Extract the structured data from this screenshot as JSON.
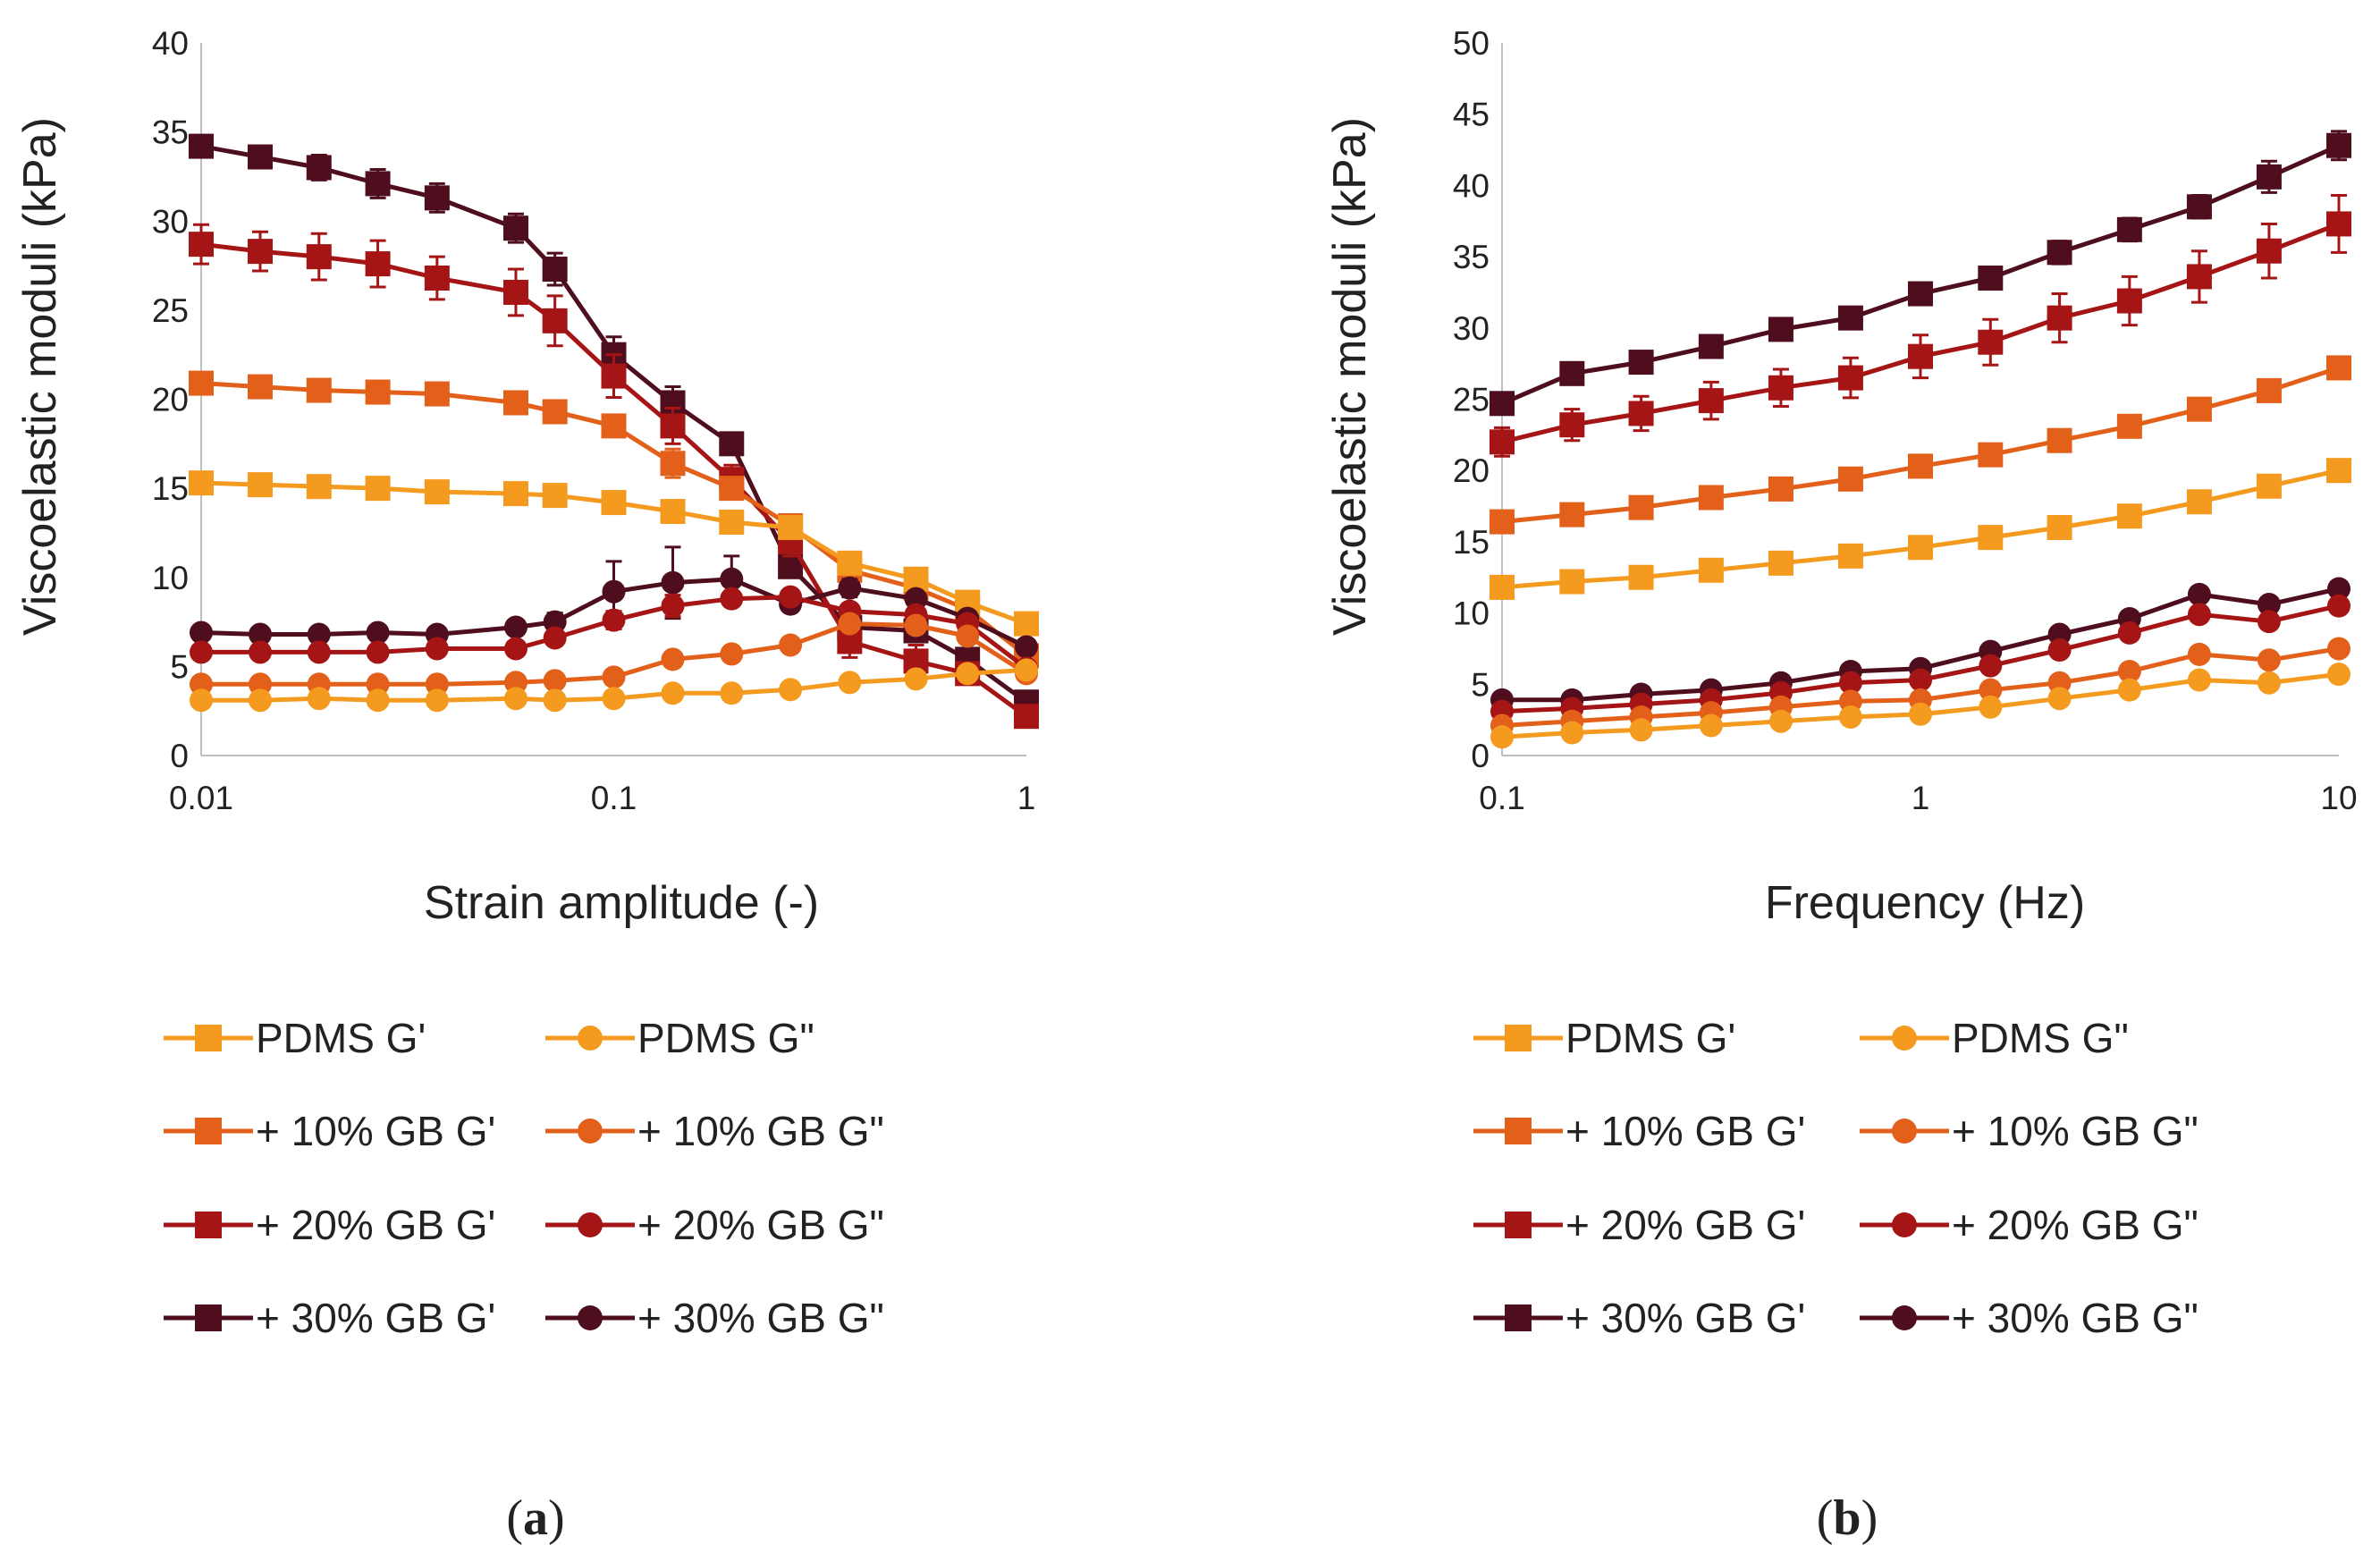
{
  "figure": {
    "panels": [
      {
        "label": "(a)",
        "label_letter": "a",
        "xlabel": "Strain amplitude (-)",
        "ylabel": "Viscoelastic moduli (kPa)",
        "xscale": "log",
        "xlim": [
          0.01,
          1
        ],
        "ylim": [
          0,
          40
        ],
        "xticks": [
          0.01,
          0.1,
          1
        ],
        "xtick_labels": [
          "0.01",
          "0.1",
          "1"
        ],
        "yticks": [
          0,
          5,
          10,
          15,
          20,
          25,
          30,
          35,
          40
        ],
        "ytick_labels": [
          "0",
          "5",
          "10",
          "15",
          "20",
          "25",
          "30",
          "35",
          "40"
        ]
      },
      {
        "label": "(b)",
        "label_letter": "b",
        "xlabel": "Frequency (Hz)",
        "ylabel": "Viscoelastic moduli (kPa)",
        "xscale": "log",
        "xlim": [
          0.1,
          10
        ],
        "ylim": [
          0,
          50
        ],
        "xticks": [
          0.1,
          1,
          10
        ],
        "xtick_labels": [
          "0.1",
          "1",
          "10"
        ],
        "yticks": [
          0,
          5,
          10,
          15,
          20,
          25,
          30,
          35,
          40,
          45,
          50
        ],
        "ytick_labels": [
          "0",
          "5",
          "10",
          "15",
          "20",
          "25",
          "30",
          "35",
          "40",
          "45",
          "50"
        ]
      }
    ],
    "series_styles": [
      {
        "name": "PDMS G'",
        "color": "#F49A1F",
        "marker": "square"
      },
      {
        "name": "PDMS G\"",
        "color": "#F49A1F",
        "marker": "circle"
      },
      {
        "name": "+ 10% GB G'",
        "color": "#E2601A",
        "marker": "square"
      },
      {
        "name": "+ 10% GB G\"",
        "color": "#E2601A",
        "marker": "circle"
      },
      {
        "name": "+ 20% GB G'",
        "color": "#A51515",
        "marker": "square"
      },
      {
        "name": "+ 20% GB G\"",
        "color": "#A51515",
        "marker": "circle"
      },
      {
        "name": "+ 30% GB G'",
        "color": "#4E0E1E",
        "marker": "square"
      },
      {
        "name": "+ 30% GB G\"",
        "color": "#4E0E1E",
        "marker": "circle"
      }
    ]
  },
  "chart_data": [
    {
      "type": "line",
      "title": "",
      "panel": "(a)",
      "xlabel": "Strain amplitude (-)",
      "ylabel": "Viscoelastic moduli (kPa)",
      "xscale": "log",
      "xlim": [
        0.01,
        1
      ],
      "ylim": [
        0,
        40
      ],
      "x": [
        0.01,
        0.0139,
        0.0193,
        0.0268,
        0.0373,
        0.0579,
        0.072,
        0.1,
        0.139,
        0.193,
        0.268,
        0.373,
        0.54,
        0.72,
        1.0
      ],
      "series": [
        {
          "name": "+ 30% GB G'",
          "values": [
            34.2,
            33.6,
            33.0,
            32.1,
            31.3,
            29.6,
            27.3,
            22.5,
            19.8,
            17.5,
            10.6,
            7.2,
            7.0,
            5.4,
            3.0
          ],
          "err": [
            0.5,
            0.6,
            0.7,
            0.8,
            0.8,
            0.8,
            0.9,
            1.0,
            0.9,
            0.6,
            0.5,
            0.6,
            0.6,
            0.4,
            0.3
          ]
        },
        {
          "name": "+ 20% GB G'",
          "values": [
            28.7,
            28.3,
            28.0,
            27.6,
            26.8,
            26.0,
            24.4,
            21.3,
            18.5,
            15.5,
            12.0,
            6.4,
            5.3,
            4.6,
            2.2
          ],
          "err": [
            1.1,
            1.1,
            1.3,
            1.3,
            1.2,
            1.3,
            1.4,
            1.2,
            1.0,
            0.8,
            0.8,
            0.9,
            0.9,
            0.5,
            0.3
          ]
        },
        {
          "name": "+ 10% GB G'",
          "values": [
            20.9,
            20.7,
            20.5,
            20.4,
            20.3,
            19.8,
            19.3,
            18.5,
            16.4,
            15.0,
            12.9,
            10.4,
            9.4,
            8.2,
            5.6
          ],
          "err": [
            0.3,
            0.3,
            0.3,
            0.3,
            0.3,
            0.3,
            0.3,
            0.4,
            0.8,
            0.4,
            0.5,
            0.4,
            0.3,
            0.3,
            0.3
          ]
        },
        {
          "name": "PDMS G'",
          "values": [
            15.3,
            15.2,
            15.1,
            15.0,
            14.8,
            14.7,
            14.6,
            14.2,
            13.7,
            13.1,
            12.8,
            10.8,
            9.9,
            8.6,
            7.4
          ],
          "err": [
            0.2,
            0.2,
            0.2,
            0.2,
            0.2,
            0.2,
            0.2,
            0.2,
            0.2,
            0.2,
            0.2,
            0.2,
            0.2,
            0.2,
            0.2
          ]
        },
        {
          "name": "+ 30% GB G\"",
          "values": [
            6.9,
            6.8,
            6.8,
            6.9,
            6.8,
            7.2,
            7.5,
            9.2,
            9.7,
            9.9,
            8.5,
            9.4,
            8.8,
            7.7,
            6.1
          ],
          "err": [
            0.3,
            0.3,
            0.3,
            0.3,
            0.3,
            0.4,
            0.5,
            1.7,
            2.0,
            1.3,
            0.4,
            0.5,
            0.3,
            0.3,
            0.3
          ]
        },
        {
          "name": "+ 20% GB G\"",
          "values": [
            5.8,
            5.8,
            5.8,
            5.8,
            6.0,
            6.0,
            6.6,
            7.6,
            8.4,
            8.8,
            8.9,
            8.1,
            7.9,
            7.4,
            4.9
          ],
          "err": [
            0.2,
            0.2,
            0.2,
            0.2,
            0.2,
            0.3,
            0.3,
            0.5,
            0.6,
            0.4,
            0.3,
            0.3,
            0.3,
            0.2,
            0.2
          ]
        },
        {
          "name": "+ 10% GB G\"",
          "values": [
            4.0,
            4.0,
            4.0,
            4.0,
            4.0,
            4.1,
            4.2,
            4.4,
            5.4,
            5.7,
            6.2,
            7.4,
            7.3,
            6.7,
            4.6
          ],
          "err": [
            0.2,
            0.2,
            0.2,
            0.2,
            0.2,
            0.2,
            0.2,
            0.2,
            0.4,
            0.3,
            0.3,
            0.2,
            0.2,
            0.2,
            0.2
          ]
        },
        {
          "name": "PDMS G\"",
          "values": [
            3.1,
            3.1,
            3.2,
            3.1,
            3.1,
            3.2,
            3.1,
            3.2,
            3.5,
            3.5,
            3.7,
            4.1,
            4.3,
            4.6,
            4.8
          ],
          "err": [
            0.1,
            0.1,
            0.1,
            0.1,
            0.1,
            0.1,
            0.1,
            0.1,
            0.1,
            0.1,
            0.1,
            0.1,
            0.1,
            0.1,
            0.1
          ]
        }
      ],
      "legend": [
        "PDMS G'",
        "PDMS G\"",
        "+ 10% GB G'",
        "+ 10% GB G\"",
        "+ 20% GB G'",
        "+ 20% GB G\"",
        "+ 30% GB G'",
        "+ 30% GB G\""
      ],
      "legend_position": "bottom"
    },
    {
      "type": "line",
      "title": "",
      "panel": "(b)",
      "xlabel": "Frequency (Hz)",
      "ylabel": "Viscoelastic moduli (kPa)",
      "xscale": "log",
      "xlim": [
        0.1,
        10
      ],
      "ylim": [
        0,
        50
      ],
      "x": [
        0.1,
        0.147,
        0.215,
        0.316,
        0.464,
        0.681,
        1.0,
        1.47,
        2.15,
        3.16,
        4.64,
        6.81,
        10.0
      ],
      "series": [
        {
          "name": "+ 30% GB G'",
          "values": [
            24.7,
            26.8,
            27.6,
            28.7,
            29.9,
            30.7,
            32.4,
            33.5,
            35.3,
            36.9,
            38.5,
            40.6,
            42.8
          ],
          "err": [
            0.5,
            0.6,
            0.6,
            0.6,
            0.6,
            0.7,
            0.7,
            0.7,
            0.8,
            0.8,
            0.8,
            1.1,
            1.0
          ]
        },
        {
          "name": "+ 20% GB G'",
          "values": [
            22.0,
            23.2,
            24.0,
            24.9,
            25.8,
            26.5,
            28.0,
            29.0,
            30.7,
            31.9,
            33.6,
            35.4,
            37.3
          ],
          "err": [
            1.0,
            1.1,
            1.2,
            1.3,
            1.3,
            1.4,
            1.5,
            1.6,
            1.7,
            1.7,
            1.8,
            1.9,
            2.0
          ]
        },
        {
          "name": "+ 10% GB G'",
          "values": [
            16.4,
            16.9,
            17.4,
            18.1,
            18.7,
            19.4,
            20.3,
            21.1,
            22.1,
            23.1,
            24.3,
            25.6,
            27.2
          ],
          "err": [
            0.3,
            0.3,
            0.3,
            0.3,
            0.3,
            0.3,
            0.3,
            0.3,
            0.3,
            0.3,
            0.3,
            0.3,
            0.3
          ]
        },
        {
          "name": "PDMS G'",
          "values": [
            11.8,
            12.2,
            12.5,
            13.0,
            13.5,
            14.0,
            14.6,
            15.3,
            16.0,
            16.8,
            17.8,
            18.9,
            20.0
          ],
          "err": [
            0.2,
            0.2,
            0.2,
            0.2,
            0.2,
            0.2,
            0.2,
            0.2,
            0.2,
            0.2,
            0.2,
            0.2,
            0.2
          ]
        },
        {
          "name": "+ 30% GB G\"",
          "values": [
            3.9,
            3.9,
            4.3,
            4.6,
            5.1,
            5.9,
            6.1,
            7.3,
            8.5,
            9.6,
            11.3,
            10.6,
            11.7
          ],
          "err": [
            0.2,
            0.2,
            0.2,
            0.2,
            0.2,
            0.2,
            0.2,
            0.3,
            0.3,
            0.3,
            0.4,
            0.4,
            0.4
          ]
        },
        {
          "name": "+ 20% GB G\"",
          "values": [
            3.1,
            3.3,
            3.6,
            3.9,
            4.4,
            5.1,
            5.3,
            6.3,
            7.4,
            8.6,
            9.9,
            9.4,
            10.5
          ],
          "err": [
            0.2,
            0.2,
            0.2,
            0.2,
            0.2,
            0.2,
            0.2,
            0.2,
            0.3,
            0.3,
            0.3,
            0.3,
            0.3
          ]
        },
        {
          "name": "+ 10% GB G\"",
          "values": [
            2.1,
            2.4,
            2.7,
            3.0,
            3.4,
            3.8,
            3.9,
            4.6,
            5.1,
            5.9,
            7.1,
            6.7,
            7.5
          ],
          "err": [
            0.1,
            0.1,
            0.1,
            0.1,
            0.1,
            0.1,
            0.1,
            0.2,
            0.2,
            0.2,
            0.2,
            0.2,
            0.2
          ]
        },
        {
          "name": "PDMS G\"",
          "values": [
            1.3,
            1.6,
            1.8,
            2.1,
            2.4,
            2.7,
            2.9,
            3.4,
            4.0,
            4.6,
            5.3,
            5.1,
            5.7
          ],
          "err": [
            0.1,
            0.1,
            0.1,
            0.1,
            0.1,
            0.1,
            0.1,
            0.1,
            0.1,
            0.2,
            0.2,
            0.2,
            0.2
          ]
        }
      ],
      "legend": [
        "PDMS G'",
        "PDMS G\"",
        "+ 10% GB G'",
        "+ 10% GB G\"",
        "+ 20% GB G'",
        "+ 20% GB G\"",
        "+ 30% GB G'",
        "+ 30% GB G\""
      ],
      "legend_position": "bottom"
    }
  ]
}
